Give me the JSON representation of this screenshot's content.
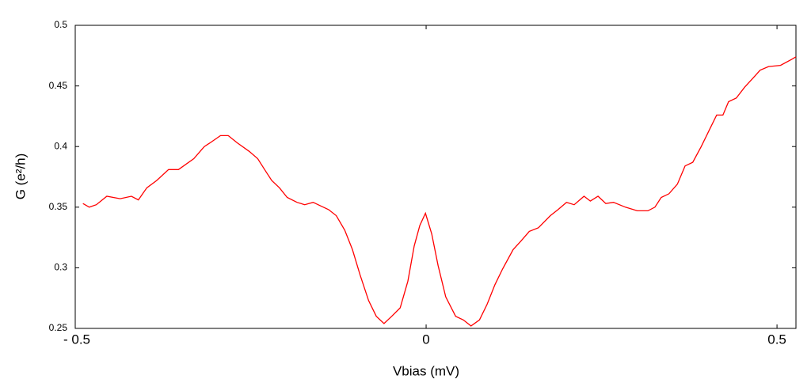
{
  "chart_data": {
    "type": "line",
    "x_label": "Vbias (mV)",
    "y_label": "G (e²/h)",
    "x": [
      -0.489,
      -0.48,
      -0.47,
      -0.455,
      -0.436,
      -0.42,
      -0.41,
      -0.398,
      -0.384,
      -0.367,
      -0.353,
      -0.331,
      -0.316,
      -0.308,
      -0.293,
      -0.282,
      -0.269,
      -0.252,
      -0.24,
      -0.229,
      -0.22,
      -0.209,
      -0.198,
      -0.184,
      -0.173,
      -0.161,
      -0.15,
      -0.139,
      -0.128,
      -0.116,
      -0.105,
      -0.094,
      -0.082,
      -0.071,
      -0.06,
      -0.049,
      -0.037,
      -0.026,
      -0.017,
      -0.009,
      -0.001,
      0.008,
      0.017,
      0.028,
      0.042,
      0.053,
      0.064,
      0.076,
      0.087,
      0.098,
      0.109,
      0.124,
      0.135,
      0.147,
      0.16,
      0.177,
      0.188,
      0.2,
      0.211,
      0.225,
      0.234,
      0.245,
      0.256,
      0.267,
      0.284,
      0.301,
      0.316,
      0.326,
      0.335,
      0.346,
      0.358,
      0.369,
      0.38,
      0.392,
      0.403,
      0.414,
      0.423,
      0.431,
      0.442,
      0.454,
      0.465,
      0.476,
      0.488,
      0.505,
      0.521,
      0.527
    ],
    "values": [
      0.353,
      0.35,
      0.352,
      0.359,
      0.357,
      0.359,
      0.356,
      0.366,
      0.372,
      0.381,
      0.381,
      0.39,
      0.4,
      0.403,
      0.409,
      0.409,
      0.403,
      0.396,
      0.39,
      0.38,
      0.372,
      0.366,
      0.358,
      0.354,
      0.352,
      0.354,
      0.351,
      0.348,
      0.343,
      0.331,
      0.315,
      0.294,
      0.273,
      0.26,
      0.254,
      0.26,
      0.267,
      0.289,
      0.318,
      0.335,
      0.345,
      0.328,
      0.302,
      0.276,
      0.26,
      0.257,
      0.252,
      0.257,
      0.27,
      0.286,
      0.299,
      0.315,
      0.322,
      0.33,
      0.333,
      0.343,
      0.348,
      0.354,
      0.352,
      0.359,
      0.355,
      0.359,
      0.353,
      0.354,
      0.35,
      0.347,
      0.347,
      0.35,
      0.358,
      0.361,
      0.369,
      0.384,
      0.387,
      0.4,
      0.413,
      0.426,
      0.426,
      0.437,
      0.44,
      0.449,
      0.456,
      0.463,
      0.466,
      0.467,
      0.472,
      0.474
    ],
    "color": "#ff0000",
    "xlim": [
      -0.5,
      0.527
    ],
    "xticks": [
      {
        "value": -0.5,
        "label": "- 0.5"
      },
      0,
      0.5
    ],
    "ylim": [
      0.25,
      0.5
    ],
    "yticks": [
      0.25,
      0.3,
      0.35,
      0.4,
      0.45,
      0.5
    ]
  }
}
